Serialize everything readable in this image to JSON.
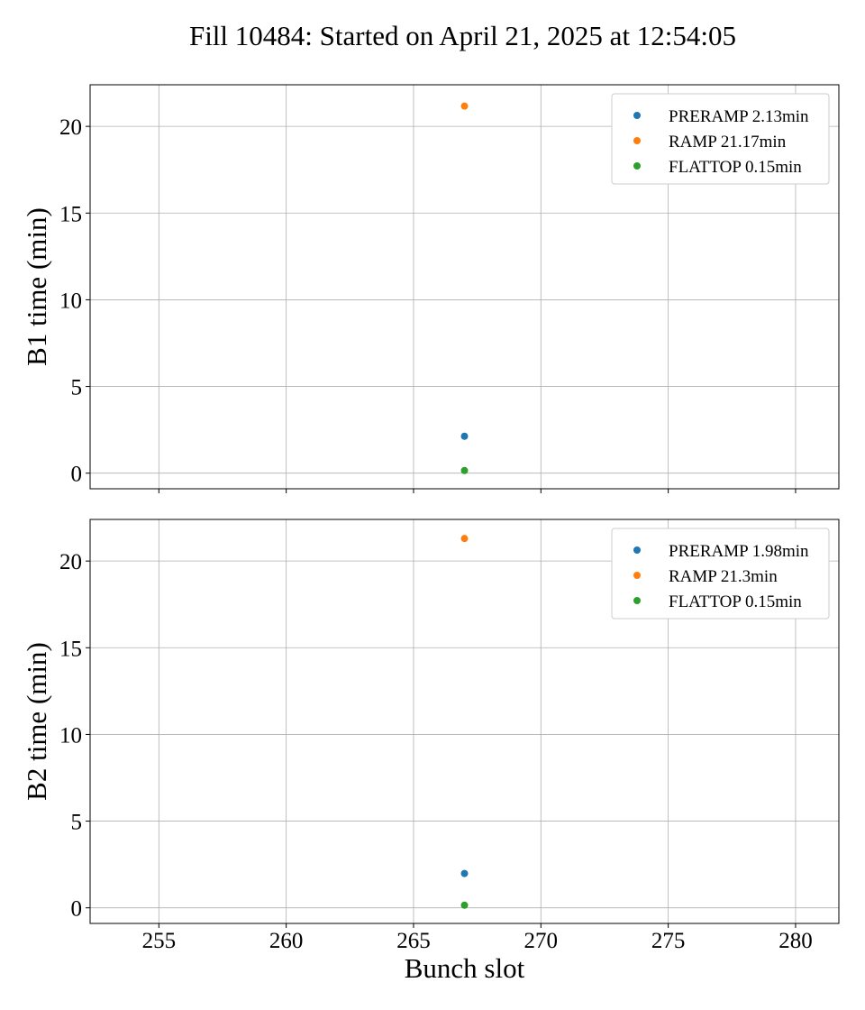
{
  "figure": {
    "title": "Fill 10484: Started on April 21, 2025 at 12:54:05"
  },
  "chart_data": [
    {
      "type": "scatter",
      "title": "",
      "xlabel": "",
      "ylabel": "B1 time (min)",
      "xlim": [
        252.3,
        281.7
      ],
      "ylim": [
        -0.9,
        22.4
      ],
      "xticks": [
        255,
        260,
        265,
        270,
        275,
        280
      ],
      "yticks": [
        0,
        5,
        10,
        15,
        20
      ],
      "show_xtick_labels": false,
      "grid": true,
      "legend_position": "top-right",
      "series": [
        {
          "name": "PRERAMP 2.13min",
          "color": "#1f77b4",
          "points": [
            [
              267,
              2.13
            ]
          ]
        },
        {
          "name": "RAMP 21.17min",
          "color": "#ff7f0e",
          "points": [
            [
              267,
              21.17
            ]
          ]
        },
        {
          "name": "FLATTOP 0.15min",
          "color": "#2ca02c",
          "points": [
            [
              267,
              0.15
            ]
          ]
        }
      ]
    },
    {
      "type": "scatter",
      "title": "",
      "xlabel": "Bunch slot",
      "ylabel": "B2 time (min)",
      "xlim": [
        252.3,
        281.7
      ],
      "ylim": [
        -0.9,
        22.4
      ],
      "xticks": [
        255,
        260,
        265,
        270,
        275,
        280
      ],
      "yticks": [
        0,
        5,
        10,
        15,
        20
      ],
      "show_xtick_labels": true,
      "grid": true,
      "legend_position": "top-right",
      "series": [
        {
          "name": "PRERAMP 1.98min",
          "color": "#1f77b4",
          "points": [
            [
              267,
              1.98
            ]
          ]
        },
        {
          "name": "RAMP 21.3min",
          "color": "#ff7f0e",
          "points": [
            [
              267,
              21.3
            ]
          ]
        },
        {
          "name": "FLATTOP 0.15min",
          "color": "#2ca02c",
          "points": [
            [
              267,
              0.15
            ]
          ]
        }
      ]
    }
  ]
}
